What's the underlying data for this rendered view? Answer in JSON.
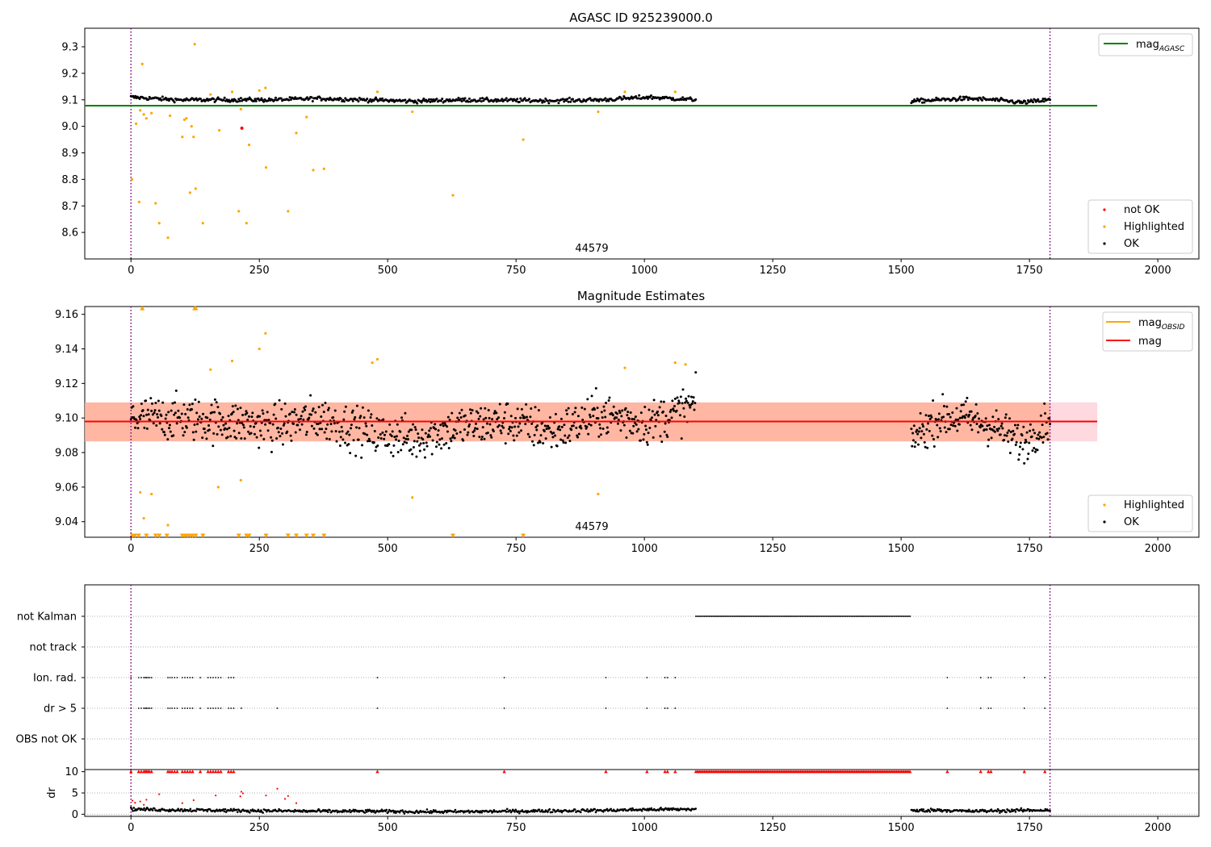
{
  "figure": {
    "title": "AGASC ID 925239000.0",
    "obsid_label": "44579"
  },
  "colors": {
    "ok": "#000000",
    "highlighted": "#ffa500",
    "not_ok": "#ff0000",
    "mag_agasc": "#008000",
    "mag_obsid": "#ffa500",
    "mag": "#ff0000",
    "band": "#ffc0cb",
    "band_overlap": "#ffa07a",
    "vline": "#800080",
    "grid": "#b0b0b0"
  },
  "chart_data": [
    {
      "type": "scatter",
      "title": "",
      "xlim": [
        -90,
        2080
      ],
      "ylim": [
        8.5,
        9.37
      ],
      "xticks": [
        0,
        250,
        500,
        750,
        1000,
        1250,
        1500,
        1750,
        2000
      ],
      "yticks": [
        8.6,
        8.7,
        8.8,
        8.9,
        9.0,
        9.1,
        9.2,
        9.3
      ],
      "vlines": [
        0,
        1790
      ],
      "hlines": [
        {
          "name": "mag_AGASC",
          "y": 9.078,
          "x": [
            -90,
            1882
          ]
        }
      ],
      "legend_top": [
        {
          "label_main": "mag",
          "label_sub": "AGASC",
          "kind": "line",
          "color_key": "mag_agasc"
        }
      ],
      "legend_bottom": [
        {
          "label": "not OK",
          "kind": "dot",
          "color_key": "not_ok"
        },
        {
          "label": "Highlighted",
          "kind": "dot",
          "color_key": "highlighted"
        },
        {
          "label": "OK",
          "kind": "dot",
          "color_key": "ok"
        }
      ],
      "series": [
        {
          "name": "OK",
          "kind": "band_points",
          "segments": [
            {
              "x": [
                0,
                1100
              ],
              "center": [
                9.11,
                9.1,
                9.1,
                9.1,
                9.105,
                9.1,
                9.095,
                9.1,
                9.098,
                9.097,
                9.1,
                9.11,
                9.1
              ],
              "jitter": 0.012,
              "n": 520
            },
            {
              "x": [
                1520,
                1790
              ],
              "center": [
                9.095,
                9.1,
                9.105,
                9.1,
                9.09,
                9.1
              ],
              "jitter": 0.012,
              "n": 140
            }
          ]
        },
        {
          "name": "Highlighted",
          "kind": "points",
          "points": [
            [
              2,
              8.8
            ],
            [
              10,
              9.01
            ],
            [
              16,
              8.715
            ],
            [
              18,
              9.06
            ],
            [
              22,
              9.235
            ],
            [
              25,
              9.045
            ],
            [
              30,
              9.03
            ],
            [
              40,
              9.05
            ],
            [
              48,
              8.71
            ],
            [
              55,
              8.635
            ],
            [
              72,
              8.58
            ],
            [
              76,
              9.04
            ],
            [
              100,
              8.96
            ],
            [
              104,
              9.025
            ],
            [
              108,
              9.03
            ],
            [
              115,
              8.75
            ],
            [
              118,
              9.0
            ],
            [
              122,
              8.96
            ],
            [
              124,
              9.31
            ],
            [
              126,
              8.765
            ],
            [
              140,
              8.635
            ],
            [
              155,
              9.12
            ],
            [
              172,
              8.985
            ],
            [
              197,
              9.13
            ],
            [
              210,
              8.68
            ],
            [
              214,
              9.065
            ],
            [
              225,
              8.635
            ],
            [
              230,
              8.93
            ],
            [
              250,
              9.135
            ],
            [
              262,
              9.145
            ],
            [
              263,
              8.845
            ],
            [
              306,
              8.68
            ],
            [
              322,
              8.975
            ],
            [
              342,
              9.035
            ],
            [
              355,
              8.835
            ],
            [
              376,
              8.84
            ],
            [
              480,
              9.13
            ],
            [
              548,
              9.055
            ],
            [
              627,
              8.74
            ],
            [
              764,
              8.95
            ],
            [
              910,
              9.055
            ],
            [
              962,
              9.13
            ],
            [
              1060,
              9.13
            ]
          ]
        },
        {
          "name": "not OK",
          "kind": "points",
          "points": [
            [
              216,
              8.993
            ]
          ]
        }
      ]
    },
    {
      "type": "scatter",
      "title": "Magnitude Estimates",
      "xlim": [
        -90,
        2080
      ],
      "ylim": [
        9.031,
        9.1645
      ],
      "xticks": [
        0,
        250,
        500,
        750,
        1000,
        1250,
        1500,
        1750,
        2000
      ],
      "yticks": [
        9.04,
        9.06,
        9.08,
        9.1,
        9.12,
        9.14,
        9.16
      ],
      "vlines": [
        0,
        1790
      ],
      "bands": [
        {
          "y": [
            9.0865,
            9.109
          ],
          "x": [
            -90,
            1882
          ],
          "color_key": "band"
        },
        {
          "y": [
            9.0865,
            9.109
          ],
          "x": [
            -90,
            1790
          ],
          "color_key": "band_overlap"
        }
      ],
      "hlines": [
        {
          "name": "mag",
          "y": 9.098,
          "x": [
            -90,
            1882
          ]
        }
      ],
      "legend_top": [
        {
          "label_main": "mag",
          "label_sub": "OBSID",
          "kind": "line",
          "color_key": "mag_obsid"
        },
        {
          "label_main": "mag",
          "label_sub": "",
          "kind": "line",
          "color_key": "mag"
        }
      ],
      "legend_bottom": [
        {
          "label": "Highlighted",
          "kind": "dot",
          "color_key": "highlighted"
        },
        {
          "label": "OK",
          "kind": "dot",
          "color_key": "ok"
        }
      ],
      "series": [
        {
          "name": "OK",
          "kind": "band_points",
          "segments": [
            {
              "x": [
                0,
                1100
              ],
              "center": [
                9.1,
                9.1,
                9.098,
                9.095,
                9.1,
                9.092,
                9.088,
                9.095,
                9.098,
                9.092,
                9.102,
                9.097,
                9.108
              ],
              "jitter": 0.02,
              "n": 800
            },
            {
              "x": [
                1520,
                1790
              ],
              "center": [
                9.088,
                9.1,
                9.1,
                9.095,
                9.085,
                9.1
              ],
              "jitter": 0.018,
              "n": 200
            }
          ]
        },
        {
          "name": "Highlighted",
          "kind": "points",
          "points": [
            [
              22,
              9.163
            ],
            [
              124,
              9.163
            ],
            [
              262,
              9.149
            ],
            [
              250,
              9.14
            ],
            [
              480,
              9.134
            ],
            [
              470,
              9.132
            ],
            [
              197,
              9.133
            ],
            [
              155,
              9.128
            ],
            [
              962,
              9.129
            ],
            [
              1060,
              9.132
            ],
            [
              1080,
              9.131
            ],
            [
              18,
              9.057
            ],
            [
              40,
              9.056
            ],
            [
              25,
              9.042
            ],
            [
              72,
              9.038
            ],
            [
              170,
              9.06
            ],
            [
              214,
              9.064
            ],
            [
              548,
              9.054
            ],
            [
              910,
              9.056
            ]
          ]
        },
        {
          "name": "Highlighted (below range)",
          "kind": "triangles_down",
          "y": 9.032,
          "x": [
            3,
            8,
            15,
            30,
            48,
            55,
            70,
            100,
            105,
            110,
            115,
            120,
            126,
            140,
            210,
            225,
            230,
            263,
            306,
            322,
            342,
            355,
            376,
            627,
            764
          ]
        },
        {
          "name": "Highlighted (above range)",
          "kind": "triangles_up",
          "y": 9.1635,
          "x": [
            22,
            124,
            126
          ]
        }
      ]
    },
    {
      "type": "scatter",
      "title": "",
      "xlim": [
        -90,
        2080
      ],
      "categories": [
        "not Kalman",
        "not track",
        "Ion. rad.",
        "dr > 5",
        "OBS not OK"
      ],
      "vlines": [
        0,
        1790
      ],
      "series": [
        {
          "name": "not Kalman",
          "row": 0,
          "ranges": [
            [
              1100,
              1520
            ]
          ],
          "points": []
        },
        {
          "name": "not track",
          "row": 1,
          "ranges": [],
          "points": []
        },
        {
          "name": "Ion. rad.",
          "row": 2,
          "ranges": [],
          "points": [
            0,
            15,
            20,
            25,
            28,
            30,
            33,
            36,
            40,
            72,
            76,
            80,
            85,
            90,
            100,
            105,
            110,
            115,
            120,
            135,
            150,
            155,
            160,
            165,
            170,
            175,
            190,
            195,
            200,
            480,
            727,
            925,
            1005,
            1040,
            1045,
            1060,
            1590,
            1655,
            1670,
            1675,
            1740,
            1780
          ]
        },
        {
          "name": "dr > 5",
          "row": 3,
          "ranges": [],
          "points": [
            0,
            15,
            20,
            25,
            28,
            30,
            33,
            36,
            40,
            72,
            76,
            80,
            85,
            90,
            100,
            105,
            110,
            115,
            120,
            135,
            150,
            155,
            160,
            165,
            170,
            175,
            190,
            195,
            200,
            215,
            285,
            480,
            727,
            925,
            1005,
            1040,
            1045,
            1060,
            1590,
            1655,
            1670,
            1675,
            1740,
            1780
          ]
        },
        {
          "name": "OBS not OK",
          "row": 4,
          "ranges": [],
          "points": []
        }
      ]
    },
    {
      "type": "scatter",
      "title": "",
      "ylabel": "dr",
      "xlim": [
        -90,
        2080
      ],
      "ylim": [
        -0.5,
        10.5
      ],
      "xticks": [
        0,
        250,
        500,
        750,
        1000,
        1250,
        1500,
        1750,
        2000
      ],
      "yticks": [
        0,
        5,
        10
      ],
      "vlines": [
        0,
        1790
      ],
      "series": [
        {
          "name": "dr",
          "kind": "band_points",
          "segments": [
            {
              "x": [
                0,
                1100
              ],
              "center": [
                1.2,
                1.0,
                0.9,
                0.8,
                0.7,
                0.7,
                0.6,
                0.6,
                0.7,
                0.8,
                0.9,
                1.1,
                1.2
              ],
              "jitter": 0.6,
              "n": 600
            },
            {
              "x": [
                1520,
                1790
              ],
              "center": [
                0.8,
                1.0,
                0.7,
                0.8,
                0.9,
                1.0
              ],
              "jitter": 0.6,
              "n": 150
            }
          ]
        },
        {
          "name": "dr > 5",
          "kind": "points",
          "points": [
            [
              3,
              3.2
            ],
            [
              8,
              2.7
            ],
            [
              18,
              3.0
            ],
            [
              25,
              2.2
            ],
            [
              30,
              3.4
            ],
            [
              55,
              4.7
            ],
            [
              100,
              2.6
            ],
            [
              122,
              3.3
            ],
            [
              165,
              4.4
            ],
            [
              213,
              4.2
            ],
            [
              215,
              5.3
            ],
            [
              218,
              4.9
            ],
            [
              263,
              4.4
            ],
            [
              285,
              6.0
            ],
            [
              300,
              3.6
            ],
            [
              306,
              4.3
            ],
            [
              322,
              2.6
            ]
          ]
        },
        {
          "name": "dr > 5 (clipped)",
          "kind": "triangles_up",
          "y": 10,
          "x": [
            0,
            15,
            20,
            25,
            28,
            30,
            33,
            36,
            40,
            72,
            76,
            80,
            85,
            90,
            100,
            105,
            110,
            115,
            120,
            135,
            150,
            155,
            160,
            165,
            170,
            175,
            190,
            195,
            200,
            480,
            727,
            925,
            1005,
            1040,
            1045,
            1060,
            1590,
            1655,
            1670,
            1675,
            1740,
            1780
          ],
          "ranges": [
            [
              1100,
              1520
            ]
          ]
        }
      ]
    }
  ]
}
